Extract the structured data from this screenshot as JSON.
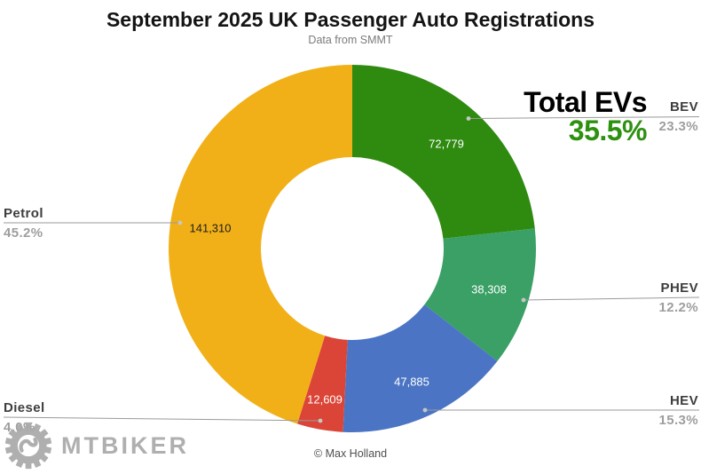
{
  "title": "September 2025 UK Passenger Auto Registrations",
  "subtitle": "Data from SMMT",
  "credit": "© Max Holland",
  "watermark": "MTBIKER",
  "chart_data": {
    "type": "pie",
    "donut": true,
    "inner_radius_ratio": 0.5,
    "start_angle_deg": 0,
    "direction": "clockwise",
    "title": "September 2025 UK Passenger Auto Registrations",
    "subtitle": "Data from SMMT",
    "legend": "none",
    "segments": [
      {
        "label": "BEV",
        "pct": "23.3%",
        "value": 72779,
        "value_label": "72,779",
        "color": "#2f8a10"
      },
      {
        "label": "PHEV",
        "pct": "12.2%",
        "value": 38308,
        "value_label": "38,308",
        "color": "#3aa065"
      },
      {
        "label": "HEV",
        "pct": "15.3%",
        "value": 47885,
        "value_label": "47,885",
        "color": "#4b75c4"
      },
      {
        "label": "Diesel",
        "pct": "4.0%",
        "value": 12609,
        "value_label": "12,609",
        "color": "#db4537"
      },
      {
        "label": "Petrol",
        "pct": "45.2%",
        "value": 141310,
        "value_label": "141,310",
        "color": "#f2b018"
      }
    ],
    "total_evs": {
      "label": "Total EVs",
      "pct": "35.5%"
    },
    "leader_line_color": "#9a9a9a",
    "leader_dot_color": "#c6c6c6"
  }
}
